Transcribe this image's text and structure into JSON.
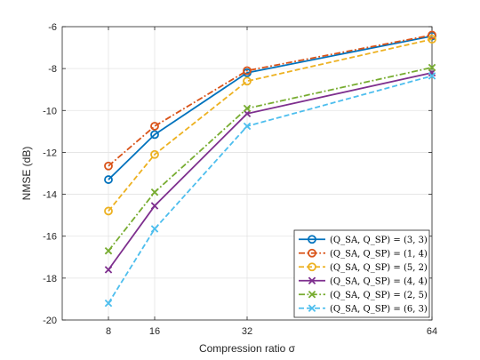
{
  "chart_data": {
    "type": "line",
    "xlabel": "Compression ratio σ",
    "ylabel": "NMSE (dB)",
    "x": [
      8,
      16,
      32,
      64
    ],
    "xlim": [
      0,
      64
    ],
    "xticks": [
      8,
      16,
      32,
      64
    ],
    "ylim": [
      -20,
      -6
    ],
    "yticks": [
      -20,
      -18,
      -16,
      -14,
      -12,
      -10,
      -8,
      -6
    ],
    "grid": true,
    "legend_position": "bottom-right",
    "series": [
      {
        "name": "(Q_SA, Q_SP) = (3,3)",
        "legend_label": "(Q_SA, Q_SP) = (3, 3)",
        "color": "#0072BD",
        "dash": "solid",
        "marker": "circle",
        "values": [
          -13.3,
          -11.15,
          -8.2,
          -6.45
        ]
      },
      {
        "name": "(Q_SA, Q_SP) = (1,4)",
        "legend_label": "(Q_SA, Q_SP) = (1, 4)",
        "color": "#D95319",
        "dash": "dashdot",
        "marker": "circle",
        "values": [
          -12.65,
          -10.75,
          -8.1,
          -6.4
        ]
      },
      {
        "name": "(Q_SA, Q_SP) = (5,2)",
        "legend_label": "(Q_SA, Q_SP) = (5, 2)",
        "color": "#EDB120",
        "dash": "dashed",
        "marker": "circle",
        "values": [
          -14.8,
          -12.1,
          -8.6,
          -6.6
        ]
      },
      {
        "name": "(Q_SA, Q_SP) = (4,4)",
        "legend_label": "(Q_SA, Q_SP) = (4, 4)",
        "color": "#7E2F8E",
        "dash": "solid",
        "marker": "x",
        "values": [
          -17.6,
          -14.55,
          -10.15,
          -8.2
        ]
      },
      {
        "name": "(Q_SA, Q_SP) = (2,5)",
        "legend_label": "(Q_SA, Q_SP) = (2, 5)",
        "color": "#77AC30",
        "dash": "dashdot",
        "marker": "x",
        "values": [
          -16.7,
          -13.9,
          -9.9,
          -7.95
        ]
      },
      {
        "name": "(Q_SA, Q_SP) = (6,3)",
        "legend_label": "(Q_SA, Q_SP) = (6, 3)",
        "color": "#4DBEEE",
        "dash": "dashed",
        "marker": "x",
        "values": [
          -19.2,
          -15.65,
          -10.75,
          -8.35
        ]
      }
    ]
  }
}
